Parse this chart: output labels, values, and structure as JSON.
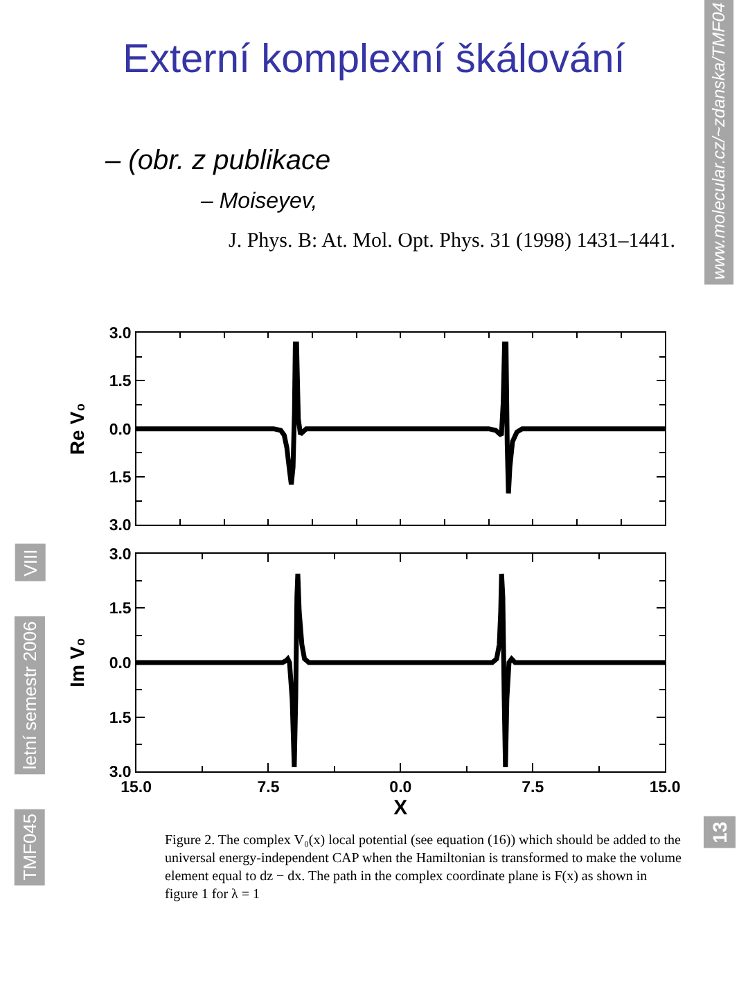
{
  "chart_data": [
    {
      "type": "line",
      "title": "Externí komplexní škálování",
      "subtitle": "– (obr. z publikace",
      "ylabel": "Re V₀",
      "annotations": [
        "– Moiseyev,",
        "J. Phys. B: At. Mol. Opt. Phys. 31 (1998) 1431–1441.",
        "www.molecular.cz/~zdanska/TMF04"
      ],
      "x": [
        -15,
        -7.2,
        -6.8,
        -6.6,
        -6.45,
        -6.3,
        -6.2,
        -6.1,
        -6.02,
        -5.97,
        -5.9,
        -5.8,
        -5.68,
        -5.55,
        -5.35,
        -5.0,
        5.0,
        5.4,
        5.6,
        5.72,
        5.82,
        5.9,
        5.98,
        6.05,
        6.12,
        6.2,
        6.35,
        6.6,
        6.9,
        15
      ],
      "values": [
        0,
        0,
        -0.05,
        -0.2,
        -0.6,
        -1.3,
        -1.74,
        -1.2,
        0.5,
        2.65,
        2.65,
        0.3,
        -0.17,
        -0.1,
        0,
        0,
        0,
        -0.05,
        -0.15,
        -0.2,
        0.8,
        2.65,
        2.65,
        -0.5,
        -2.02,
        -1.2,
        -0.4,
        -0.1,
        0,
        0
      ],
      "color": "#000000",
      "xlim": [
        -15,
        15
      ],
      "xticks": [
        {
          "value": -12.5,
          "label": null
        },
        {
          "value": -10,
          "label": null
        },
        {
          "value": -7.5,
          "label": null
        },
        {
          "value": -5,
          "label": null
        },
        {
          "value": -2.5,
          "label": null
        },
        {
          "value": 0,
          "label": null
        },
        {
          "value": 2.5,
          "label": null
        },
        {
          "value": 5,
          "label": null
        },
        {
          "value": 7.5,
          "label": null
        },
        {
          "value": 10,
          "label": null
        },
        {
          "value": 12.5,
          "label": null
        }
      ],
      "ylim": [
        -3,
        3
      ],
      "yticks": [
        {
          "value": -3,
          "label": "3.0"
        },
        {
          "value": -2.25,
          "label": null
        },
        {
          "value": -1.5,
          "label": "1.5"
        },
        {
          "value": -0.75,
          "label": null
        },
        {
          "value": 0,
          "label": "0.0"
        },
        {
          "value": 0.75,
          "label": null
        },
        {
          "value": 1.5,
          "label": "1.5"
        },
        {
          "value": 2.25,
          "label": null
        },
        {
          "value": 3,
          "label": "3.0"
        }
      ],
      "tick_labels": "y"
    },
    {
      "type": "line",
      "xlabel": "X",
      "ylabel": "Im V₀",
      "annotations": [
        "Figure 2. The complex V₀(x) local potential (see equation (16)) which should be added to the universal energy-independent CAP when the Hamiltonian is transformed to make the volume element equal to dz − dx. The path in the complex coordinate plane is F(x) as shown in figure 1 for λ = 1",
        "TMF045",
        "letní semestr 2006",
        "VIII",
        "13"
      ],
      "x": [
        -15,
        -6.7,
        -6.5,
        -6.4,
        -6.3,
        -6.15,
        -6.03,
        -5.95,
        -5.88,
        -5.83,
        -5.75,
        -5.6,
        -5.45,
        -5.2,
        5.2,
        5.45,
        5.6,
        5.68,
        5.73,
        5.8,
        5.88,
        5.95,
        6.03,
        6.15,
        6.3,
        6.4,
        6.5,
        6.7,
        15
      ],
      "values": [
        0,
        0,
        0.05,
        0.1,
        0.0,
        -1.0,
        -2.88,
        -1.0,
        1.8,
        2.44,
        1.4,
        0.5,
        0.1,
        0,
        0,
        0.1,
        0.5,
        1.4,
        2.44,
        1.8,
        -1.0,
        -2.88,
        -1.0,
        0.0,
        0.1,
        0.05,
        0,
        0,
        0
      ],
      "color": "#000000",
      "xlim": [
        -15,
        15
      ],
      "xticks": [
        {
          "value": -15,
          "label": "15.0"
        },
        {
          "value": -11.25,
          "label": null
        },
        {
          "value": -7.5,
          "label": "7.5"
        },
        {
          "value": -3.75,
          "label": null
        },
        {
          "value": 0,
          "label": "0.0"
        },
        {
          "value": 3.75,
          "label": null
        },
        {
          "value": 7.5,
          "label": "7.5"
        },
        {
          "value": 11.25,
          "label": null
        },
        {
          "value": 15,
          "label": "15.0"
        }
      ],
      "ylim": [
        -3,
        3
      ],
      "yticks": [
        {
          "value": -3,
          "label": "3.0"
        },
        {
          "value": -2.25,
          "label": null
        },
        {
          "value": -1.5,
          "label": "1.5"
        },
        {
          "value": -0.75,
          "label": null
        },
        {
          "value": 0,
          "label": "0.0"
        },
        {
          "value": 0.75,
          "label": null
        },
        {
          "value": 1.5,
          "label": "1.5"
        },
        {
          "value": 2.25,
          "label": null
        },
        {
          "value": 3,
          "label": "3.0"
        }
      ]
    }
  ]
}
